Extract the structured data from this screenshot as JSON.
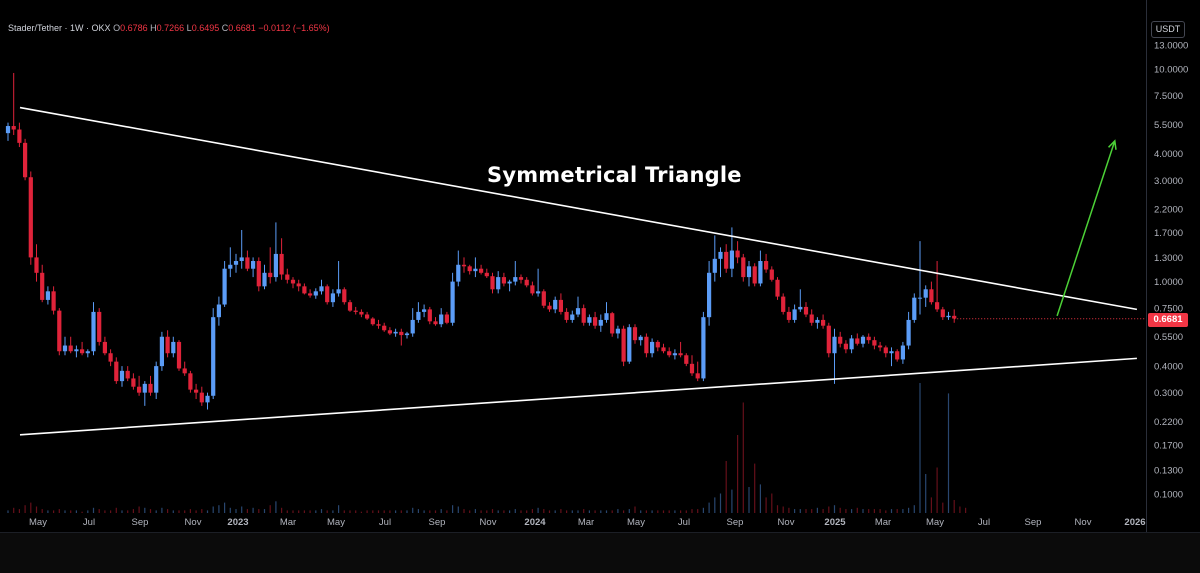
{
  "header": {
    "symbol": "Stader/Tether · 1W · OKX",
    "open_label": "O",
    "open": "0.6786",
    "high_label": "H",
    "high": "0.7266",
    "low_label": "L",
    "low": "0.6495",
    "close_label": "C",
    "close": "0.6681",
    "change": "−0.0112 (−1.65%)"
  },
  "currency": "USDT",
  "last_price": "0.6681",
  "annotation": "Symmetrical Triangle",
  "colors": {
    "up": "#5b9cf6",
    "down": "#e0233a",
    "trendline": "#ffffff",
    "arrow": "#4cd137",
    "axis_text": "#b2b5be",
    "last_price": "#f23645"
  },
  "chart_data": {
    "type": "candlestick",
    "title": "Stader/Tether · 1W · OKX",
    "y_scale": "log",
    "y_ticks": [
      "13.0000",
      "10.0000",
      "7.5000",
      "5.5000",
      "4.0000",
      "3.0000",
      "2.2000",
      "1.7000",
      "1.3000",
      "1.0000",
      "0.7500",
      "0.5500",
      "0.4000",
      "0.3000",
      "0.2200",
      "0.1700",
      "0.1300",
      "0.1000"
    ],
    "x_ticks": [
      "May",
      "Jul",
      "Sep",
      "Nov",
      "2023",
      "Mar",
      "May",
      "Jul",
      "Sep",
      "Nov",
      "2024",
      "Mar",
      "May",
      "Jul",
      "Sep",
      "Nov",
      "2025",
      "Mar",
      "May",
      "Jul",
      "Sep",
      "Nov",
      "2026"
    ],
    "ohlc_weekly": [
      [
        5.0,
        5.6,
        4.6,
        5.4
      ],
      [
        5.4,
        9.6,
        4.9,
        5.2
      ],
      [
        5.2,
        5.6,
        4.3,
        4.5
      ],
      [
        4.5,
        4.7,
        3.0,
        3.1
      ],
      [
        3.1,
        3.3,
        1.2,
        1.3
      ],
      [
        1.3,
        1.5,
        1.0,
        1.1
      ],
      [
        1.1,
        1.2,
        0.8,
        0.82
      ],
      [
        0.82,
        0.95,
        0.78,
        0.9
      ],
      [
        0.9,
        0.95,
        0.7,
        0.73
      ],
      [
        0.73,
        0.75,
        0.45,
        0.47
      ],
      [
        0.47,
        0.55,
        0.45,
        0.5
      ],
      [
        0.5,
        0.55,
        0.46,
        0.47
      ],
      [
        0.47,
        0.5,
        0.44,
        0.48
      ],
      [
        0.48,
        0.52,
        0.45,
        0.46
      ],
      [
        0.46,
        0.48,
        0.44,
        0.47
      ],
      [
        0.47,
        0.8,
        0.45,
        0.72
      ],
      [
        0.72,
        0.75,
        0.5,
        0.52
      ],
      [
        0.52,
        0.55,
        0.45,
        0.46
      ],
      [
        0.46,
        0.48,
        0.4,
        0.42
      ],
      [
        0.42,
        0.44,
        0.33,
        0.34
      ],
      [
        0.34,
        0.4,
        0.32,
        0.38
      ],
      [
        0.38,
        0.4,
        0.34,
        0.35
      ],
      [
        0.35,
        0.37,
        0.31,
        0.32
      ],
      [
        0.32,
        0.36,
        0.29,
        0.3
      ],
      [
        0.3,
        0.34,
        0.26,
        0.33
      ],
      [
        0.33,
        0.36,
        0.29,
        0.3
      ],
      [
        0.3,
        0.42,
        0.28,
        0.4
      ],
      [
        0.4,
        0.58,
        0.38,
        0.55
      ],
      [
        0.55,
        0.59,
        0.44,
        0.46
      ],
      [
        0.46,
        0.55,
        0.44,
        0.52
      ],
      [
        0.52,
        0.53,
        0.38,
        0.39
      ],
      [
        0.39,
        0.42,
        0.36,
        0.37
      ],
      [
        0.37,
        0.38,
        0.3,
        0.31
      ],
      [
        0.31,
        0.33,
        0.28,
        0.3
      ],
      [
        0.3,
        0.32,
        0.26,
        0.27
      ],
      [
        0.27,
        0.3,
        0.25,
        0.29
      ],
      [
        0.29,
        0.75,
        0.28,
        0.68
      ],
      [
        0.68,
        0.85,
        0.62,
        0.78
      ],
      [
        0.78,
        1.25,
        0.76,
        1.15
      ],
      [
        1.15,
        1.45,
        1.05,
        1.2
      ],
      [
        1.2,
        1.35,
        1.1,
        1.25
      ],
      [
        1.25,
        1.75,
        1.15,
        1.3
      ],
      [
        1.3,
        1.4,
        1.12,
        1.15
      ],
      [
        1.15,
        1.3,
        1.05,
        1.25
      ],
      [
        1.25,
        1.3,
        0.9,
        0.95
      ],
      [
        0.95,
        1.2,
        0.92,
        1.1
      ],
      [
        1.1,
        1.45,
        0.98,
        1.05
      ],
      [
        1.05,
        1.9,
        1.0,
        1.35
      ],
      [
        1.35,
        1.6,
        1.02,
        1.08
      ],
      [
        1.08,
        1.15,
        0.98,
        1.02
      ],
      [
        1.02,
        1.05,
        0.93,
        0.98
      ],
      [
        0.98,
        1.02,
        0.9,
        0.95
      ],
      [
        0.95,
        0.98,
        0.87,
        0.88
      ],
      [
        0.88,
        0.92,
        0.84,
        0.86
      ],
      [
        0.86,
        0.93,
        0.83,
        0.9
      ],
      [
        0.9,
        1.02,
        0.87,
        0.95
      ],
      [
        0.95,
        0.97,
        0.78,
        0.8
      ],
      [
        0.8,
        0.92,
        0.76,
        0.88
      ],
      [
        0.88,
        1.25,
        0.85,
        0.92
      ],
      [
        0.92,
        0.94,
        0.78,
        0.8
      ],
      [
        0.8,
        0.82,
        0.72,
        0.73
      ],
      [
        0.73,
        0.76,
        0.7,
        0.72
      ],
      [
        0.72,
        0.74,
        0.68,
        0.7
      ],
      [
        0.7,
        0.72,
        0.66,
        0.67
      ],
      [
        0.67,
        0.68,
        0.62,
        0.63
      ],
      [
        0.63,
        0.66,
        0.6,
        0.62
      ],
      [
        0.62,
        0.64,
        0.58,
        0.59
      ],
      [
        0.59,
        0.61,
        0.56,
        0.57
      ],
      [
        0.57,
        0.6,
        0.55,
        0.58
      ],
      [
        0.58,
        0.6,
        0.5,
        0.56
      ],
      [
        0.56,
        0.58,
        0.54,
        0.57
      ],
      [
        0.57,
        0.75,
        0.55,
        0.66
      ],
      [
        0.66,
        0.8,
        0.64,
        0.72
      ],
      [
        0.72,
        0.78,
        0.68,
        0.74
      ],
      [
        0.74,
        0.76,
        0.63,
        0.65
      ],
      [
        0.65,
        0.68,
        0.62,
        0.63
      ],
      [
        0.63,
        0.75,
        0.61,
        0.7
      ],
      [
        0.7,
        0.72,
        0.63,
        0.64
      ],
      [
        0.64,
        1.1,
        0.62,
        1.0
      ],
      [
        1.0,
        1.4,
        0.95,
        1.2
      ],
      [
        1.2,
        1.3,
        1.1,
        1.18
      ],
      [
        1.18,
        1.2,
        1.08,
        1.12
      ],
      [
        1.12,
        1.3,
        1.05,
        1.15
      ],
      [
        1.15,
        1.2,
        1.08,
        1.1
      ],
      [
        1.1,
        1.15,
        1.04,
        1.06
      ],
      [
        1.06,
        1.1,
        0.88,
        0.92
      ],
      [
        0.92,
        1.12,
        0.88,
        1.05
      ],
      [
        1.05,
        1.1,
        0.95,
        0.98
      ],
      [
        0.98,
        1.02,
        0.9,
        1.0
      ],
      [
        1.0,
        1.25,
        0.96,
        1.05
      ],
      [
        1.05,
        1.08,
        0.98,
        1.02
      ],
      [
        1.02,
        1.05,
        0.94,
        0.96
      ],
      [
        0.96,
        1.0,
        0.86,
        0.88
      ],
      [
        0.88,
        1.15,
        0.85,
        0.9
      ],
      [
        0.9,
        0.92,
        0.75,
        0.77
      ],
      [
        0.77,
        0.8,
        0.72,
        0.74
      ],
      [
        0.74,
        0.85,
        0.71,
        0.82
      ],
      [
        0.82,
        0.88,
        0.7,
        0.72
      ],
      [
        0.72,
        0.75,
        0.64,
        0.66
      ],
      [
        0.66,
        0.73,
        0.64,
        0.7
      ],
      [
        0.7,
        0.85,
        0.68,
        0.75
      ],
      [
        0.75,
        0.78,
        0.62,
        0.64
      ],
      [
        0.64,
        0.7,
        0.62,
        0.68
      ],
      [
        0.68,
        0.72,
        0.6,
        0.62
      ],
      [
        0.62,
        0.7,
        0.58,
        0.66
      ],
      [
        0.66,
        0.8,
        0.64,
        0.71
      ],
      [
        0.71,
        0.72,
        0.55,
        0.57
      ],
      [
        0.57,
        0.62,
        0.54,
        0.6
      ],
      [
        0.6,
        0.62,
        0.4,
        0.42
      ],
      [
        0.42,
        0.63,
        0.41,
        0.61
      ],
      [
        0.61,
        0.63,
        0.51,
        0.53
      ],
      [
        0.53,
        0.56,
        0.5,
        0.55
      ],
      [
        0.55,
        0.57,
        0.44,
        0.46
      ],
      [
        0.46,
        0.54,
        0.44,
        0.52
      ],
      [
        0.52,
        0.53,
        0.47,
        0.49
      ],
      [
        0.49,
        0.51,
        0.46,
        0.47
      ],
      [
        0.47,
        0.49,
        0.44,
        0.45
      ],
      [
        0.45,
        0.48,
        0.43,
        0.46
      ],
      [
        0.46,
        0.52,
        0.44,
        0.45
      ],
      [
        0.45,
        0.46,
        0.4,
        0.41
      ],
      [
        0.41,
        0.45,
        0.36,
        0.37
      ],
      [
        0.37,
        0.42,
        0.34,
        0.35
      ],
      [
        0.35,
        0.72,
        0.34,
        0.68
      ],
      [
        0.68,
        1.25,
        0.62,
        1.1
      ],
      [
        1.1,
        1.65,
        1.0,
        1.28
      ],
      [
        1.28,
        1.45,
        1.05,
        1.38
      ],
      [
        1.38,
        1.5,
        1.1,
        1.15
      ],
      [
        1.15,
        1.8,
        1.05,
        1.4
      ],
      [
        1.4,
        1.55,
        1.22,
        1.3
      ],
      [
        1.3,
        1.35,
        1.0,
        1.05
      ],
      [
        1.05,
        1.25,
        0.95,
        1.18
      ],
      [
        1.18,
        1.22,
        0.95,
        0.98
      ],
      [
        0.98,
        1.4,
        0.95,
        1.25
      ],
      [
        1.25,
        1.35,
        1.1,
        1.14
      ],
      [
        1.14,
        1.18,
        1.0,
        1.02
      ],
      [
        1.02,
        1.05,
        0.82,
        0.85
      ],
      [
        0.85,
        0.88,
        0.7,
        0.72
      ],
      [
        0.72,
        0.76,
        0.64,
        0.66
      ],
      [
        0.66,
        0.78,
        0.64,
        0.74
      ],
      [
        0.74,
        0.92,
        0.72,
        0.76
      ],
      [
        0.76,
        0.8,
        0.68,
        0.7
      ],
      [
        0.7,
        0.74,
        0.62,
        0.64
      ],
      [
        0.64,
        0.68,
        0.6,
        0.66
      ],
      [
        0.66,
        0.7,
        0.6,
        0.62
      ],
      [
        0.62,
        0.64,
        0.44,
        0.46
      ],
      [
        0.46,
        0.6,
        0.33,
        0.55
      ],
      [
        0.55,
        0.58,
        0.49,
        0.51
      ],
      [
        0.51,
        0.53,
        0.46,
        0.48
      ],
      [
        0.48,
        0.56,
        0.46,
        0.54
      ],
      [
        0.54,
        0.57,
        0.5,
        0.51
      ],
      [
        0.51,
        0.56,
        0.49,
        0.55
      ],
      [
        0.55,
        0.57,
        0.51,
        0.53
      ],
      [
        0.53,
        0.55,
        0.48,
        0.5
      ],
      [
        0.5,
        0.52,
        0.47,
        0.49
      ],
      [
        0.49,
        0.5,
        0.44,
        0.46
      ],
      [
        0.46,
        0.49,
        0.4,
        0.47
      ],
      [
        0.47,
        0.48,
        0.42,
        0.43
      ],
      [
        0.43,
        0.52,
        0.41,
        0.5
      ],
      [
        0.5,
        0.72,
        0.48,
        0.66
      ],
      [
        0.66,
        0.88,
        0.64,
        0.84
      ],
      [
        0.84,
        1.55,
        0.7,
        0.84
      ],
      [
        0.84,
        0.96,
        0.76,
        0.92
      ],
      [
        0.92,
        1.0,
        0.78,
        0.8
      ],
      [
        0.8,
        1.25,
        0.72,
        0.74
      ],
      [
        0.74,
        0.76,
        0.66,
        0.68
      ],
      [
        0.68,
        0.72,
        0.66,
        0.69
      ],
      [
        0.69,
        0.74,
        0.64,
        0.67
      ]
    ],
    "volume": [
      0.02,
      0.04,
      0.03,
      0.06,
      0.08,
      0.05,
      0.03,
      0.02,
      0.02,
      0.03,
      0.02,
      0.02,
      0.02,
      0.01,
      0.02,
      0.04,
      0.03,
      0.02,
      0.02,
      0.04,
      0.02,
      0.02,
      0.03,
      0.05,
      0.04,
      0.03,
      0.02,
      0.04,
      0.03,
      0.02,
      0.02,
      0.02,
      0.03,
      0.02,
      0.03,
      0.02,
      0.05,
      0.06,
      0.08,
      0.04,
      0.03,
      0.05,
      0.03,
      0.04,
      0.03,
      0.03,
      0.06,
      0.09,
      0.04,
      0.02,
      0.02,
      0.02,
      0.02,
      0.02,
      0.02,
      0.03,
      0.02,
      0.02,
      0.06,
      0.02,
      0.02,
      0.02,
      0.01,
      0.02,
      0.02,
      0.02,
      0.02,
      0.02,
      0.02,
      0.02,
      0.02,
      0.04,
      0.03,
      0.02,
      0.02,
      0.02,
      0.03,
      0.02,
      0.06,
      0.05,
      0.03,
      0.02,
      0.03,
      0.02,
      0.02,
      0.03,
      0.02,
      0.02,
      0.02,
      0.03,
      0.02,
      0.02,
      0.03,
      0.04,
      0.03,
      0.02,
      0.02,
      0.03,
      0.02,
      0.02,
      0.02,
      0.03,
      0.02,
      0.02,
      0.02,
      0.02,
      0.02,
      0.03,
      0.02,
      0.03,
      0.05,
      0.02,
      0.02,
      0.02,
      0.02,
      0.02,
      0.02,
      0.02,
      0.02,
      0.02,
      0.03,
      0.03,
      0.04,
      0.08,
      0.12,
      0.15,
      0.4,
      0.18,
      0.6,
      0.85,
      0.2,
      0.38,
      0.22,
      0.12,
      0.15,
      0.06,
      0.05,
      0.04,
      0.03,
      0.03,
      0.03,
      0.03,
      0.04,
      0.03,
      0.05,
      0.06,
      0.04,
      0.03,
      0.03,
      0.04,
      0.03,
      0.03,
      0.03,
      0.03,
      0.02,
      0.03,
      0.03,
      0.03,
      0.04,
      0.06,
      1.0,
      0.3,
      0.12,
      0.35,
      0.08,
      0.92,
      0.1,
      0.05,
      0.04
    ],
    "trendlines": [
      {
        "from": {
          "week": 0,
          "price": 6.6
        },
        "to": {
          "week": 177,
          "price": 0.74
        }
      },
      {
        "from": {
          "week": 0,
          "price": 0.19
        },
        "to": {
          "week": 177,
          "price": 0.435
        }
      }
    ],
    "projection_arrow": {
      "from": {
        "week": 163,
        "price": 0.69
      },
      "to": {
        "week": 174,
        "price": 4.6
      }
    },
    "last_price": 0.6681
  }
}
